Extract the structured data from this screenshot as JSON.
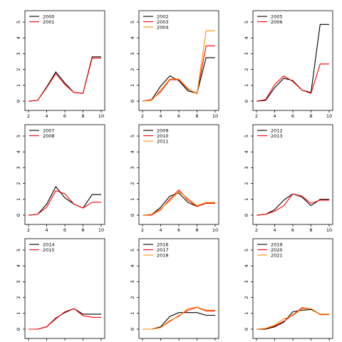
{
  "colors": {
    "black": "#000000",
    "red": "#ff0000",
    "orange": "#ff8c00"
  },
  "chart_data": [
    {
      "type": "line",
      "xlim": [
        2,
        10
      ],
      "ylim": [
        0,
        5
      ],
      "xticks": [
        "2",
        "4",
        "6",
        "8",
        "10"
      ],
      "yticks": [
        "0",
        "1",
        "2",
        "3",
        "4",
        "5"
      ],
      "x": [
        2,
        3,
        4,
        5,
        6,
        7,
        8,
        9,
        10
      ],
      "series": [
        {
          "name": "2000",
          "color": "#000000",
          "values": [
            0.0,
            0.05,
            0.9,
            1.85,
            1.15,
            0.55,
            0.5,
            2.8,
            2.8
          ]
        },
        {
          "name": "2001",
          "color": "#ff0000",
          "values": [
            0.0,
            0.05,
            0.85,
            1.75,
            1.05,
            0.55,
            0.5,
            2.72,
            2.72
          ]
        }
      ]
    },
    {
      "type": "line",
      "xlim": [
        2,
        10
      ],
      "ylim": [
        0,
        5
      ],
      "xticks": [
        "2",
        "4",
        "6",
        "8",
        "10"
      ],
      "yticks": [
        "0",
        "1",
        "2",
        "3",
        "4",
        "5"
      ],
      "x": [
        2,
        3,
        4,
        5,
        6,
        7,
        8,
        9,
        10
      ],
      "series": [
        {
          "name": "2002",
          "color": "#000000",
          "values": [
            0.0,
            0.1,
            0.95,
            1.6,
            1.3,
            0.65,
            0.5,
            2.75,
            2.75
          ]
        },
        {
          "name": "2003",
          "color": "#ff0000",
          "values": [
            0.0,
            0.1,
            0.6,
            1.35,
            1.35,
            0.75,
            0.5,
            3.5,
            3.5
          ]
        },
        {
          "name": "2004",
          "color": "#ff8c00",
          "values": [
            0.0,
            0.05,
            0.7,
            1.4,
            1.4,
            0.8,
            0.45,
            4.45,
            4.45
          ]
        }
      ]
    },
    {
      "type": "line",
      "xlim": [
        2,
        10
      ],
      "ylim": [
        0,
        5
      ],
      "xticks": [
        "2",
        "4",
        "6",
        "8",
        "10"
      ],
      "yticks": [
        "0",
        "1",
        "2",
        "3",
        "4",
        "5"
      ],
      "x": [
        2,
        3,
        4,
        5,
        6,
        7,
        8,
        9,
        10
      ],
      "series": [
        {
          "name": "2005",
          "color": "#000000",
          "values": [
            0.0,
            0.05,
            0.85,
            1.45,
            1.3,
            0.7,
            0.55,
            4.85,
            4.85
          ]
        },
        {
          "name": "2006",
          "color": "#ff0000",
          "values": [
            0.0,
            0.1,
            1.05,
            1.6,
            1.25,
            0.7,
            0.5,
            2.35,
            2.35
          ]
        }
      ]
    },
    {
      "type": "line",
      "xlim": [
        2,
        10
      ],
      "ylim": [
        0,
        5
      ],
      "xticks": [
        "2",
        "4",
        "6",
        "8",
        "10"
      ],
      "yticks": [
        "0",
        "1",
        "2",
        "3",
        "4",
        "5"
      ],
      "x": [
        2,
        3,
        4,
        5,
        6,
        7,
        8,
        9,
        10
      ],
      "series": [
        {
          "name": "2007",
          "color": "#000000",
          "values": [
            0.0,
            0.05,
            0.7,
            1.8,
            1.1,
            0.7,
            0.45,
            1.3,
            1.3
          ]
        },
        {
          "name": "2008",
          "color": "#ff0000",
          "values": [
            0.0,
            0.05,
            0.5,
            1.55,
            1.35,
            0.7,
            0.45,
            0.82,
            0.82
          ]
        }
      ]
    },
    {
      "type": "line",
      "xlim": [
        2,
        10
      ],
      "ylim": [
        0,
        5
      ],
      "xticks": [
        "2",
        "4",
        "6",
        "8",
        "10"
      ],
      "yticks": [
        "0",
        "1",
        "2",
        "3",
        "4",
        "5"
      ],
      "x": [
        2,
        3,
        4,
        5,
        6,
        7,
        8,
        9,
        10
      ],
      "series": [
        {
          "name": "2009",
          "color": "#000000",
          "values": [
            0.0,
            0.05,
            0.5,
            1.2,
            1.4,
            0.8,
            0.55,
            0.8,
            0.8
          ]
        },
        {
          "name": "2010",
          "color": "#ff0000",
          "values": [
            0.0,
            0.0,
            0.35,
            1.0,
            1.6,
            0.95,
            0.55,
            0.75,
            0.75
          ]
        },
        {
          "name": "2011",
          "color": "#ff8c00",
          "values": [
            0.0,
            0.05,
            0.4,
            0.9,
            1.5,
            1.05,
            0.6,
            0.8,
            0.8
          ]
        }
      ]
    },
    {
      "type": "line",
      "xlim": [
        2,
        10
      ],
      "ylim": [
        0,
        5
      ],
      "xticks": [
        "2",
        "4",
        "6",
        "8",
        "10"
      ],
      "yticks": [
        "0",
        "1",
        "2",
        "3",
        "4",
        "5"
      ],
      "x": [
        2,
        3,
        4,
        5,
        6,
        7,
        8,
        9,
        10
      ],
      "series": [
        {
          "name": "2012",
          "color": "#000000",
          "values": [
            0.0,
            0.05,
            0.35,
            0.95,
            1.35,
            1.15,
            0.6,
            1.0,
            1.0
          ]
        },
        {
          "name": "2013",
          "color": "#ff0000",
          "values": [
            0.0,
            0.05,
            0.25,
            0.6,
            1.35,
            1.2,
            0.75,
            0.95,
            0.95
          ]
        }
      ]
    },
    {
      "type": "line",
      "xlim": [
        2,
        10
      ],
      "ylim": [
        0,
        5
      ],
      "xticks": [
        "2",
        "4",
        "6",
        "8",
        "10"
      ],
      "yticks": [
        "0",
        "1",
        "2",
        "3",
        "4",
        "5"
      ],
      "x": [
        2,
        3,
        4,
        5,
        6,
        7,
        8,
        9,
        10
      ],
      "series": [
        {
          "name": "2014",
          "color": "#000000",
          "values": [
            0.0,
            0.0,
            0.15,
            0.7,
            1.05,
            1.3,
            0.95,
            0.95,
            0.95
          ]
        },
        {
          "name": "2015",
          "color": "#ff0000",
          "values": [
            0.0,
            0.0,
            0.15,
            0.65,
            1.1,
            1.3,
            0.85,
            0.75,
            0.75
          ]
        }
      ]
    },
    {
      "type": "line",
      "xlim": [
        2,
        10
      ],
      "ylim": [
        0,
        5
      ],
      "xticks": [
        "2",
        "4",
        "6",
        "8",
        "10"
      ],
      "yticks": [
        "0",
        "1",
        "2",
        "3",
        "4",
        "5"
      ],
      "x": [
        2,
        3,
        4,
        5,
        6,
        7,
        8,
        9,
        10
      ],
      "series": [
        {
          "name": "2016",
          "color": "#000000",
          "values": [
            0.0,
            0.0,
            0.15,
            0.8,
            1.05,
            1.05,
            1.05,
            0.88,
            0.88
          ]
        },
        {
          "name": "2017",
          "color": "#ff0000",
          "values": [
            0.0,
            0.0,
            0.1,
            0.5,
            0.85,
            1.2,
            1.38,
            1.15,
            1.15
          ]
        },
        {
          "name": "2018",
          "color": "#ff8c00",
          "values": [
            0.0,
            0.0,
            0.1,
            0.55,
            0.8,
            1.3,
            1.4,
            1.2,
            1.2
          ]
        }
      ]
    },
    {
      "type": "line",
      "xlim": [
        2,
        10
      ],
      "ylim": [
        0,
        5
      ],
      "xticks": [
        "2",
        "4",
        "6",
        "8",
        "10"
      ],
      "yticks": [
        "0",
        "1",
        "2",
        "3",
        "4",
        "5"
      ],
      "x": [
        2,
        3,
        4,
        5,
        6,
        7,
        8,
        9,
        10
      ],
      "series": [
        {
          "name": "2019",
          "color": "#000000",
          "values": [
            0.0,
            0.0,
            0.15,
            0.45,
            1.1,
            1.2,
            1.25,
            0.95,
            0.95
          ]
        },
        {
          "name": "2020",
          "color": "#ff0000",
          "values": [
            0.0,
            0.05,
            0.2,
            0.5,
            0.9,
            1.35,
            1.3,
            0.92,
            0.92
          ]
        },
        {
          "name": "2021",
          "color": "#ff8c00",
          "values": [
            0.0,
            0.05,
            0.25,
            0.65,
            0.85,
            1.3,
            1.3,
            0.95,
            0.95
          ]
        }
      ]
    }
  ]
}
